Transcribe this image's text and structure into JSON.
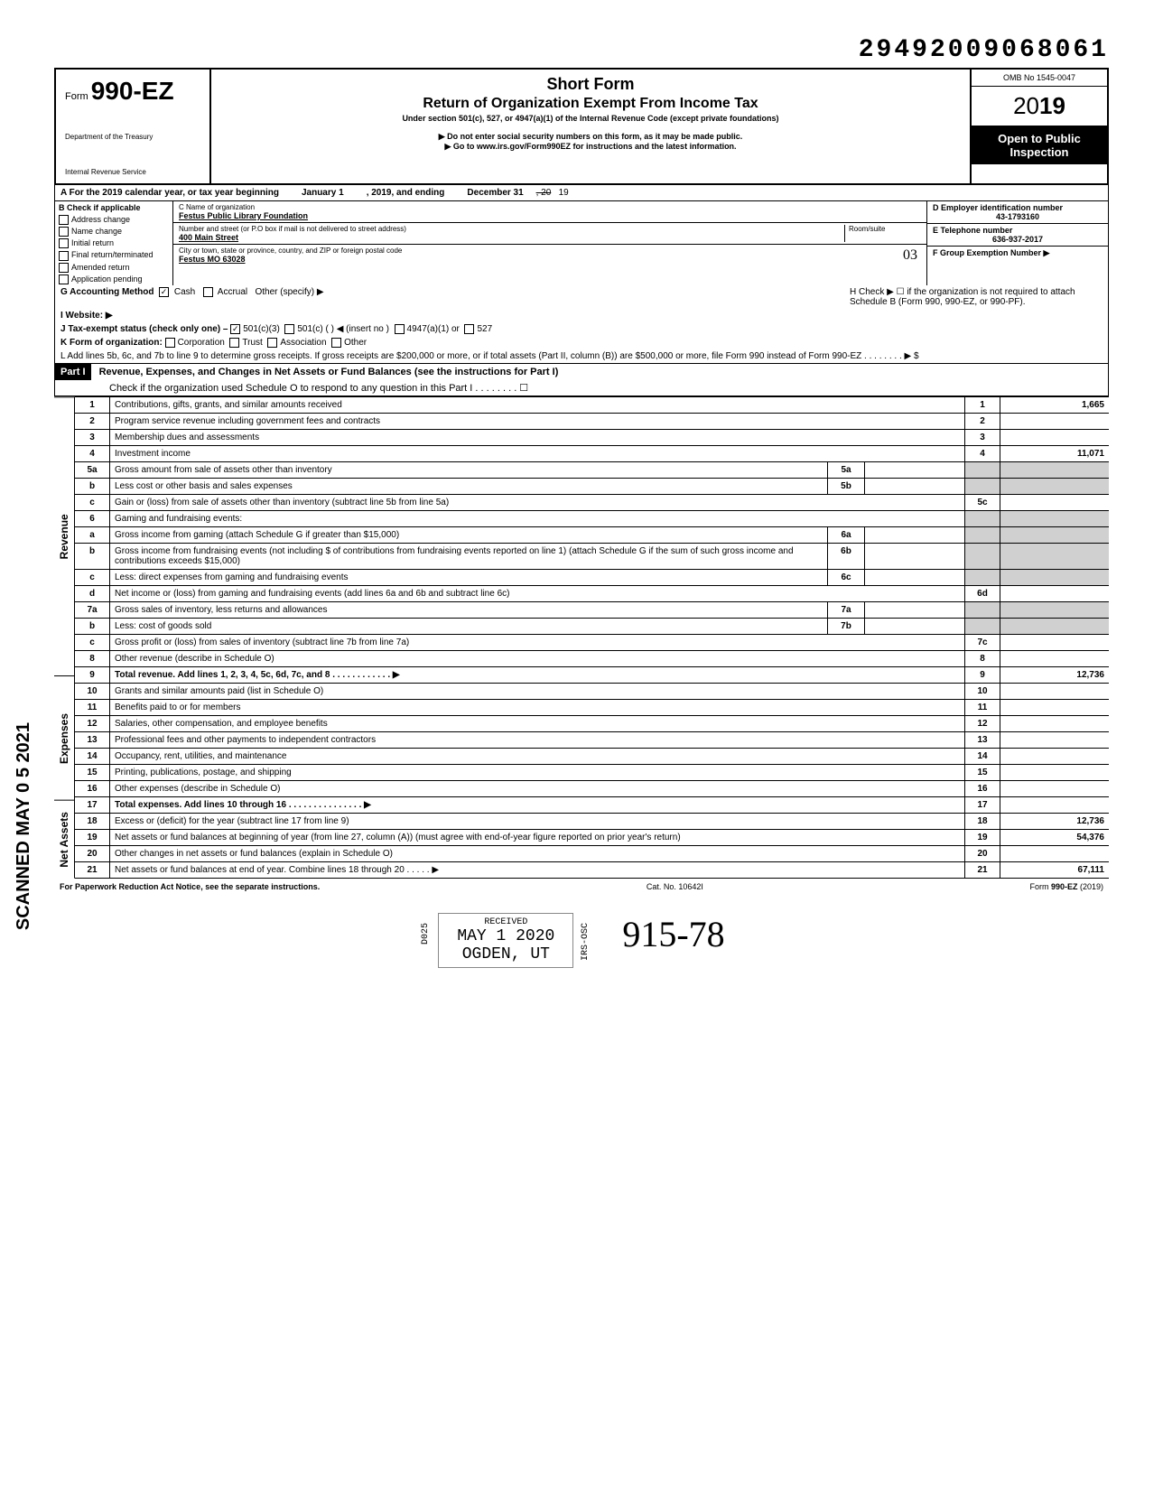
{
  "top_code": "29492009068061",
  "form": {
    "prefix": "Form",
    "number": "990-EZ",
    "dept1": "Department of the Treasury",
    "dept2": "Internal Revenue Service"
  },
  "title": {
    "short": "Short Form",
    "main": "Return of Organization Exempt From Income Tax",
    "sub": "Under section 501(c), 527, or 4947(a)(1) of the Internal Revenue Code (except private foundations)",
    "note1": "▶ Do not enter social security numbers on this form, as it may be made public.",
    "note2": "▶ Go to www.irs.gov/Form990EZ for instructions and the latest information."
  },
  "right": {
    "omb": "OMB No 1545-0047",
    "year": "2019",
    "open": "Open to Public Inspection"
  },
  "row_a": {
    "prefix": "A For the 2019 calendar year, or tax year beginning",
    "mid1": "January 1",
    "mid2": ", 2019, and ending",
    "mid3": "December 31",
    "suffix": ", 20   19"
  },
  "col_b": {
    "header": "B Check if applicable",
    "items": [
      "Address change",
      "Name change",
      "Initial return",
      "Final return/terminated",
      "Amended return",
      "Application pending"
    ]
  },
  "col_c": {
    "name_lbl": "C  Name of organization",
    "name_val": "Festus Public Library Foundation",
    "addr_lbl": "Number and street (or P.O box if mail is not delivered to street address)",
    "addr_val": "400 Main Street",
    "room_lbl": "Room/suite",
    "city_lbl": "City or town, state or province, country, and ZIP or foreign postal code",
    "city_val": "Festus MO  63028",
    "hand": "03"
  },
  "col_d": {
    "d_lbl": "D Employer identification number",
    "d_val": "43-1793160",
    "e_lbl": "E Telephone number",
    "e_val": "636-937-2017",
    "f_lbl": "F Group Exemption Number ▶"
  },
  "lines_ghijkl": {
    "g": "G Accounting Method",
    "g_cash": "Cash",
    "g_accrual": "Accrual",
    "g_other": "Other (specify) ▶",
    "h": "H Check ▶ ☐ if the organization is not required to attach Schedule B (Form 990, 990-EZ, or 990-PF).",
    "i": "I Website: ▶",
    "j": "J Tax-exempt status (check only one) –",
    "j1": "501(c)(3)",
    "j2": "501(c) (      ) ◀ (insert no )",
    "j3": "4947(a)(1) or",
    "j4": "527",
    "k": "K Form of organization:",
    "k1": "Corporation",
    "k2": "Trust",
    "k3": "Association",
    "k4": "Other",
    "l": "L Add lines 5b, 6c, and 7b to line 9 to determine gross receipts. If gross receipts are $200,000 or more, or if total assets (Part II, column (B)) are $500,000 or more, file Form 990 instead of Form 990-EZ   .   .   .   .   .   .   .   .   ▶  $"
  },
  "part1": {
    "label": "Part I",
    "title": "Revenue, Expenses, and Changes in Net Assets or Fund Balances (see the instructions for Part I)",
    "check": "Check if the organization used Schedule O to respond to any question in this Part I  .   .   .   .   .   .   .   .  ☐"
  },
  "sections": {
    "revenue": "Revenue",
    "expenses": "Expenses",
    "netassets": "Net Assets"
  },
  "rows": [
    {
      "n": "1",
      "d": "Contributions, gifts, grants, and similar amounts received",
      "rn": "1",
      "rv": "1,665"
    },
    {
      "n": "2",
      "d": "Program service revenue including government fees and contracts",
      "rn": "2",
      "rv": ""
    },
    {
      "n": "3",
      "d": "Membership dues and assessments",
      "rn": "3",
      "rv": ""
    },
    {
      "n": "4",
      "d": "Investment income",
      "rn": "4",
      "rv": "11,071"
    },
    {
      "n": "5a",
      "d": "Gross amount from sale of assets other than inventory",
      "in": "5a",
      "iv": ""
    },
    {
      "n": "b",
      "d": "Less cost or other basis and sales expenses",
      "in": "5b",
      "iv": ""
    },
    {
      "n": "c",
      "d": "Gain or (loss) from sale of assets other than inventory (subtract line 5b from line 5a)",
      "rn": "5c",
      "rv": ""
    },
    {
      "n": "6",
      "d": "Gaming and fundraising events:"
    },
    {
      "n": "a",
      "d": "Gross income from gaming (attach Schedule G if greater than $15,000)",
      "in": "6a",
      "iv": ""
    },
    {
      "n": "b",
      "d": "Gross income from fundraising events (not including  $                    of contributions from fundraising events reported on line 1) (attach Schedule G if the sum of such gross income and contributions exceeds $15,000)",
      "in": "6b",
      "iv": ""
    },
    {
      "n": "c",
      "d": "Less: direct expenses from gaming and fundraising events",
      "in": "6c",
      "iv": ""
    },
    {
      "n": "d",
      "d": "Net income or (loss) from gaming and fundraising events (add lines 6a and 6b and subtract line 6c)",
      "rn": "6d",
      "rv": ""
    },
    {
      "n": "7a",
      "d": "Gross sales of inventory, less returns and allowances",
      "in": "7a",
      "iv": ""
    },
    {
      "n": "b",
      "d": "Less: cost of goods sold",
      "in": "7b",
      "iv": ""
    },
    {
      "n": "c",
      "d": "Gross profit or (loss) from sales of inventory (subtract line 7b from line 7a)",
      "rn": "7c",
      "rv": ""
    },
    {
      "n": "8",
      "d": "Other revenue (describe in Schedule O)",
      "rn": "8",
      "rv": ""
    },
    {
      "n": "9",
      "d": "Total revenue. Add lines 1, 2, 3, 4, 5c, 6d, 7c, and 8   .   .   .   .   .   .   .   .   .   .   .   .   ▶",
      "rn": "9",
      "rv": "12,736",
      "bold": true
    },
    {
      "n": "10",
      "d": "Grants and similar amounts paid (list in Schedule O)",
      "rn": "10",
      "rv": ""
    },
    {
      "n": "11",
      "d": "Benefits paid to or for members",
      "rn": "11",
      "rv": ""
    },
    {
      "n": "12",
      "d": "Salaries, other compensation, and employee benefits",
      "rn": "12",
      "rv": ""
    },
    {
      "n": "13",
      "d": "Professional fees and other payments to independent contractors",
      "rn": "13",
      "rv": ""
    },
    {
      "n": "14",
      "d": "Occupancy, rent, utilities, and maintenance",
      "rn": "14",
      "rv": ""
    },
    {
      "n": "15",
      "d": "Printing, publications, postage, and shipping",
      "rn": "15",
      "rv": ""
    },
    {
      "n": "16",
      "d": "Other expenses (describe in Schedule O)",
      "rn": "16",
      "rv": ""
    },
    {
      "n": "17",
      "d": "Total expenses. Add lines 10 through 16   .   .   .   .   .   .   .   .   .   .   .   .   .   .   .   ▶",
      "rn": "17",
      "rv": "",
      "bold": true
    },
    {
      "n": "18",
      "d": "Excess or (deficit) for the year (subtract line 17 from line 9)",
      "rn": "18",
      "rv": "12,736"
    },
    {
      "n": "19",
      "d": "Net assets or fund balances at beginning of year (from line 27, column (A)) (must agree with end-of-year figure reported on prior year's return)",
      "rn": "19",
      "rv": "54,376"
    },
    {
      "n": "20",
      "d": "Other changes in net assets or fund balances (explain in Schedule O)",
      "rn": "20",
      "rv": ""
    },
    {
      "n": "21",
      "d": "Net assets or fund balances at end of year. Combine lines 18 through 20   .   .   .   .   .   ▶",
      "rn": "21",
      "rv": "67,111"
    }
  ],
  "footer": {
    "left": "For Paperwork Reduction Act Notice, see the separate instructions.",
    "mid": "Cat. No. 10642I",
    "right": "Form 990-EZ (2019)"
  },
  "stamp": {
    "received": "RECEIVED",
    "date": "MAY 1  2020",
    "place": "OGDEN, UT",
    "side1": "D025",
    "side2": "IRS-OSC"
  },
  "scanned": "SCANNED MAY 0 5 2021",
  "signature": "915-78"
}
